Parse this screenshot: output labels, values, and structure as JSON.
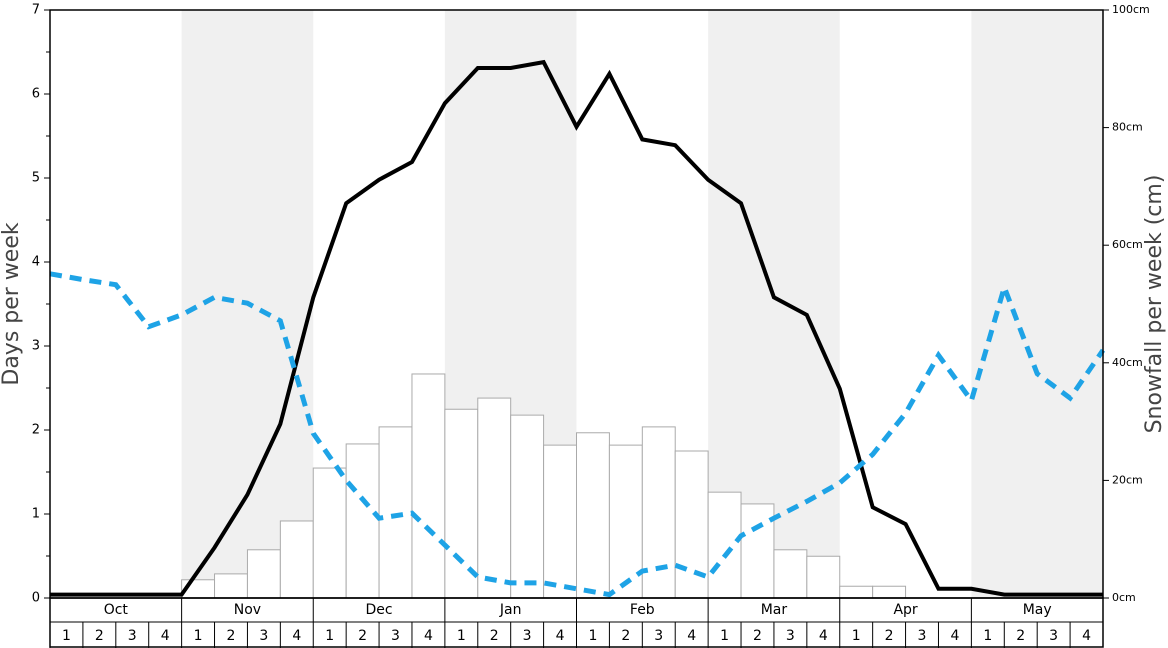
{
  "chart_data": {
    "type": "bar-line",
    "ylabel": "Days per week",
    "y2label": "Snowfall per week (cm)",
    "months": [
      "Oct",
      "Nov",
      "Dec",
      "Jan",
      "Feb",
      "Mar",
      "Apr",
      "May"
    ],
    "weeks": [
      "1",
      "2",
      "3",
      "4"
    ],
    "ylim": [
      0,
      7
    ],
    "yticks": [
      0,
      1,
      2,
      3,
      4,
      5,
      6,
      7
    ],
    "y2lim": [
      0,
      100
    ],
    "y2ticks": [
      {
        "value": 0,
        "label": "0cm"
      },
      {
        "value": 20,
        "label": "20cm"
      },
      {
        "value": 40,
        "label": "40cm"
      },
      {
        "value": 60,
        "label": "60cm"
      },
      {
        "value": 80,
        "label": "80cm"
      },
      {
        "value": 100,
        "label": "100cm"
      }
    ],
    "bars": {
      "axis": "y2",
      "color": "#ffffff",
      "values": [
        0,
        0,
        0,
        0,
        3.1,
        4.1,
        8.2,
        13.1,
        22.1,
        26.2,
        29.1,
        38.1,
        32.1,
        34.0,
        31.1,
        26.0,
        28.1,
        26.0,
        29.1,
        25.0,
        18.0,
        16.0,
        8.2,
        7.1,
        2.0,
        2.0,
        0,
        0,
        0,
        0,
        0,
        0
      ]
    },
    "series": [
      {
        "color": "#000000",
        "dashed": false,
        "values": [
          0.04,
          0.04,
          0.04,
          0.04,
          0.04,
          0.6,
          1.23,
          2.07,
          3.58,
          4.7,
          4.98,
          5.19,
          5.89,
          6.31,
          6.31,
          6.38,
          5.61,
          6.24,
          5.46,
          5.39,
          4.98,
          4.7,
          3.58,
          3.37,
          2.49,
          1.08,
          0.88,
          0.11,
          0.11,
          0.04,
          0.04,
          0.04,
          0.04
        ]
      },
      {
        "color": "#1ea3e6",
        "dashed": true,
        "values": [
          3.86,
          3.79,
          3.73,
          3.23,
          3.37,
          3.58,
          3.51,
          3.3,
          1.96,
          1.4,
          0.95,
          1.01,
          0.63,
          0.25,
          0.18,
          0.18,
          0.11,
          0.04,
          0.32,
          0.39,
          0.25,
          0.74,
          0.95,
          1.15,
          1.37,
          1.71,
          2.2,
          2.89,
          2.35,
          3.7,
          2.67,
          2.38,
          2.95
        ]
      }
    ]
  }
}
